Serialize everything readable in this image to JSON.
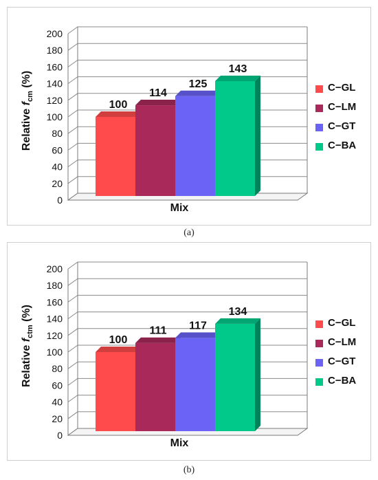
{
  "chart_data": [
    {
      "type": "bar",
      "panel_caption": "(a)",
      "categories": [
        "Mix"
      ],
      "series": [
        {
          "name": "C−GL",
          "values": [
            100
          ],
          "color": "#ff4b4b"
        },
        {
          "name": "C−LM",
          "values": [
            114
          ],
          "color": "#a8295a"
        },
        {
          "name": "C−GT",
          "values": [
            125
          ],
          "color": "#6a63f5"
        },
        {
          "name": "C−BA",
          "values": [
            143
          ],
          "color": "#00c98a"
        }
      ],
      "data_labels": [
        "100",
        "114",
        "125",
        "143"
      ],
      "xlabel": "Mix",
      "ylabel": {
        "main": "Relative ",
        "symbol": "f",
        "subscript": "cm",
        "suffix": " (%)"
      },
      "ylim": [
        0,
        200
      ],
      "yticks": [
        "0",
        "20",
        "40",
        "60",
        "80",
        "100",
        "120",
        "140",
        "160",
        "180",
        "200"
      ],
      "grid": true,
      "legend_position": "right",
      "style": "3d"
    },
    {
      "type": "bar",
      "panel_caption": "(b)",
      "categories": [
        "Mix"
      ],
      "series": [
        {
          "name": "C−GL",
          "values": [
            100
          ],
          "color": "#ff4b4b"
        },
        {
          "name": "C−LM",
          "values": [
            111
          ],
          "color": "#a8295a"
        },
        {
          "name": "C−GT",
          "values": [
            117
          ],
          "color": "#6a63f5"
        },
        {
          "name": "C−BA",
          "values": [
            134
          ],
          "color": "#00c98a"
        }
      ],
      "data_labels": [
        "100",
        "111",
        "117",
        "134"
      ],
      "xlabel": "Mix",
      "ylabel": {
        "main": "Relative ",
        "symbol": "f",
        "subscript": "ctm",
        "suffix": " (%)"
      },
      "ylim": [
        0,
        200
      ],
      "yticks": [
        "0",
        "20",
        "40",
        "60",
        "80",
        "100",
        "120",
        "140",
        "160",
        "180",
        "200"
      ],
      "grid": true,
      "legend_position": "right",
      "style": "3d"
    }
  ]
}
